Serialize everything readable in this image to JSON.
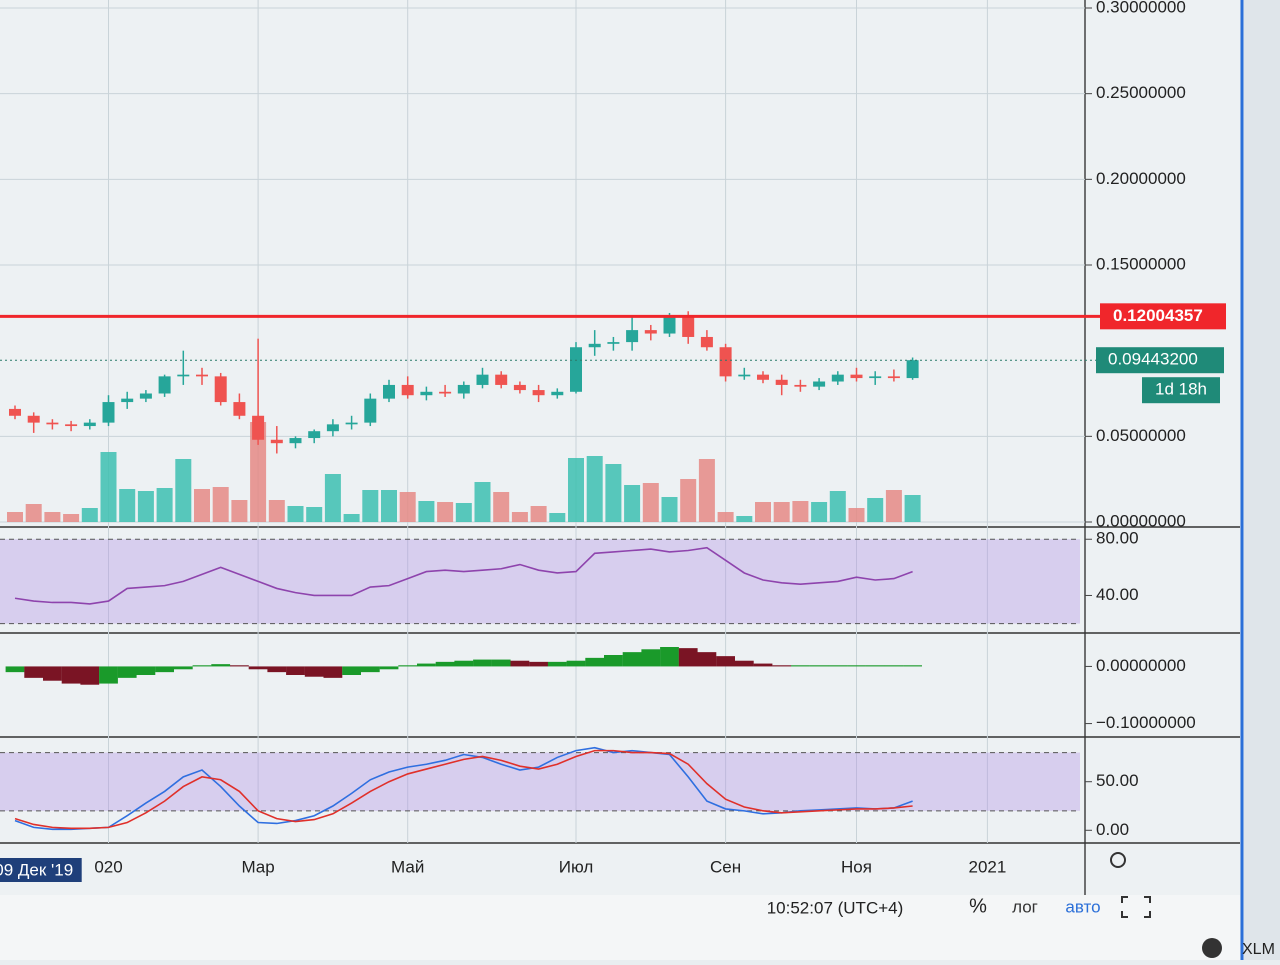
{
  "chart_data": [
    {
      "type": "candlestick",
      "up_color": "#26a69a",
      "down_color": "#ef5350",
      "volume_up_color": "#3cbfb0",
      "volume_down_color": "#e58a85",
      "open": [
        0.066,
        0.062,
        0.058,
        0.057,
        0.056,
        0.058,
        0.07,
        0.072,
        0.075,
        0.085,
        0.086,
        0.085,
        0.07,
        0.062,
        0.048,
        0.046,
        0.049,
        0.053,
        0.057,
        0.058,
        0.072,
        0.08,
        0.074,
        0.076,
        0.075,
        0.08,
        0.086,
        0.08,
        0.077,
        0.074,
        0.076,
        0.102,
        0.104,
        0.105,
        0.112,
        0.11,
        0.12,
        0.108,
        0.102,
        0.085,
        0.086,
        0.083,
        0.08,
        0.079,
        0.082,
        0.086,
        0.084,
        0.085,
        0.084
      ],
      "high": [
        0.068,
        0.064,
        0.06,
        0.059,
        0.06,
        0.074,
        0.076,
        0.077,
        0.086,
        0.1,
        0.09,
        0.087,
        0.075,
        0.107,
        0.056,
        0.05,
        0.054,
        0.06,
        0.062,
        0.075,
        0.083,
        0.085,
        0.079,
        0.08,
        0.082,
        0.09,
        0.088,
        0.082,
        0.08,
        0.078,
        0.105,
        0.112,
        0.108,
        0.12,
        0.115,
        0.122,
        0.123,
        0.112,
        0.104,
        0.09,
        0.088,
        0.086,
        0.083,
        0.084,
        0.088,
        0.09,
        0.088,
        0.089,
        0.096
      ],
      "low": [
        0.06,
        0.052,
        0.054,
        0.053,
        0.054,
        0.056,
        0.066,
        0.07,
        0.073,
        0.08,
        0.08,
        0.068,
        0.06,
        0.045,
        0.04,
        0.043,
        0.046,
        0.05,
        0.054,
        0.056,
        0.07,
        0.072,
        0.071,
        0.073,
        0.072,
        0.078,
        0.078,
        0.075,
        0.07,
        0.072,
        0.075,
        0.097,
        0.1,
        0.1,
        0.106,
        0.108,
        0.104,
        0.1,
        0.082,
        0.083,
        0.081,
        0.074,
        0.076,
        0.077,
        0.08,
        0.082,
        0.08,
        0.082,
        0.083
      ],
      "close": [
        0.062,
        0.058,
        0.057,
        0.056,
        0.058,
        0.07,
        0.072,
        0.075,
        0.085,
        0.086,
        0.085,
        0.07,
        0.062,
        0.048,
        0.046,
        0.049,
        0.053,
        0.057,
        0.058,
        0.072,
        0.08,
        0.074,
        0.076,
        0.075,
        0.08,
        0.086,
        0.08,
        0.077,
        0.074,
        0.076,
        0.102,
        0.104,
        0.105,
        0.112,
        0.11,
        0.12,
        0.108,
        0.102,
        0.085,
        0.086,
        0.083,
        0.08,
        0.079,
        0.082,
        0.086,
        0.084,
        0.085,
        0.084,
        0.094432
      ],
      "volume": [
        10,
        18,
        10,
        8,
        14,
        70,
        33,
        31,
        34,
        63,
        33,
        35,
        22,
        100,
        22,
        16,
        15,
        48,
        8,
        32,
        32,
        30,
        21,
        20,
        19,
        40,
        30,
        10,
        16,
        9,
        64,
        66,
        58,
        37,
        39,
        25,
        43,
        63,
        10,
        6,
        20,
        20,
        21,
        20,
        31,
        14,
        24,
        32,
        27
      ],
      "ylim": [
        0,
        0.3
      ],
      "yticks": [
        {
          "value": 0,
          "label": "0.00000000"
        },
        {
          "value": 0.05,
          "label": "0.05000000"
        },
        {
          "value": 0.15,
          "label": "0.15000000"
        },
        {
          "value": 0.2,
          "label": "0.20000000"
        },
        {
          "value": 0.25,
          "label": "0.25000000"
        },
        {
          "value": 0.3,
          "label": "0.30000000"
        }
      ],
      "xticks": [
        {
          "value": 5,
          "label": "020"
        },
        {
          "value": 13,
          "label": "Мар"
        },
        {
          "value": 21,
          "label": "Май"
        },
        {
          "value": 30,
          "label": "Июл"
        },
        {
          "value": 38,
          "label": "Сен"
        },
        {
          "value": 45,
          "label": "Ноя"
        },
        {
          "value": 52,
          "label": "2021"
        }
      ],
      "crosshair_x": {
        "value": 1,
        "label": "09 Дек '19"
      },
      "hline": 0.12004357,
      "hline_color": "#f0262b",
      "last_price": {
        "value": 0.094432,
        "label": "0.09443200"
      },
      "countdown": "1d 18h",
      "grid": true
    },
    {
      "type": "line",
      "series": [
        {
          "color": "#8e44ad",
          "values": [
            38,
            36,
            35,
            35,
            34,
            36,
            45,
            46,
            47,
            50,
            55,
            60,
            55,
            50,
            45,
            42,
            40,
            40,
            40,
            46,
            47,
            52,
            57,
            58,
            57,
            58,
            59,
            62,
            58,
            56,
            57,
            70,
            71,
            72,
            73,
            71,
            72,
            74,
            65,
            56,
            51,
            49,
            48,
            49,
            50,
            53,
            51,
            52,
            57
          ]
        }
      ],
      "band": [
        20,
        80
      ],
      "ylim": [
        14,
        88
      ],
      "yticks": [
        {
          "value": 80,
          "label": "80.00"
        },
        {
          "value": 40,
          "label": "40.00"
        }
      ]
    },
    {
      "type": "histogram",
      "up_color": "#1a9a2a",
      "down_color": "#7a1424",
      "values": [
        -0.01,
        -0.02,
        -0.025,
        -0.03,
        -0.032,
        -0.03,
        -0.02,
        -0.015,
        -0.01,
        -0.005,
        0.002,
        0.004,
        0.002,
        -0.005,
        -0.01,
        -0.015,
        -0.018,
        -0.02,
        -0.015,
        -0.01,
        -0.005,
        0.002,
        0.005,
        0.008,
        0.01,
        0.012,
        0.012,
        0.01,
        0.008,
        0.008,
        0.01,
        0.015,
        0.02,
        0.025,
        0.03,
        0.034,
        0.032,
        0.025,
        0.018,
        0.01,
        0.005,
        0.002,
        0.002,
        0.002,
        0.002,
        0.002,
        0.002,
        0.002,
        0.002
      ],
      "ylim": [
        -0.12,
        0.055
      ],
      "yticks": [
        {
          "value": 0,
          "label": "0.00000000"
        },
        {
          "value": -0.1,
          "label": "−0.10000000"
        }
      ]
    },
    {
      "type": "line",
      "series": [
        {
          "color": "#2f6fe0",
          "values": [
            10,
            3,
            1,
            1,
            2,
            3,
            15,
            28,
            40,
            55,
            62,
            45,
            25,
            8,
            7,
            10,
            15,
            25,
            38,
            52,
            60,
            65,
            68,
            72,
            78,
            75,
            68,
            62,
            65,
            75,
            82,
            85,
            80,
            82,
            80,
            78,
            55,
            30,
            22,
            20,
            17,
            18,
            20,
            21,
            22,
            23,
            22,
            23,
            30
          ]
        },
        {
          "color": "#e0302a",
          "values": [
            12,
            6,
            3,
            2,
            2,
            3,
            8,
            18,
            30,
            45,
            55,
            52,
            40,
            20,
            12,
            9,
            11,
            17,
            28,
            40,
            50,
            58,
            63,
            68,
            73,
            76,
            72,
            66,
            63,
            68,
            76,
            82,
            82,
            80,
            80,
            79,
            68,
            48,
            32,
            24,
            20,
            18,
            19,
            20,
            21,
            22,
            22,
            23,
            25
          ]
        }
      ],
      "band": [
        20,
        80
      ],
      "ylim": [
        -10,
        95
      ],
      "yticks": [
        {
          "value": 50,
          "label": "50.00"
        },
        {
          "value": 0,
          "label": "0.00"
        }
      ]
    }
  ],
  "toolbar": {
    "time": "10:52:07 (UTC+4)",
    "percent": "%",
    "log": "лог",
    "auto": "авто",
    "symbol": "XLM"
  }
}
